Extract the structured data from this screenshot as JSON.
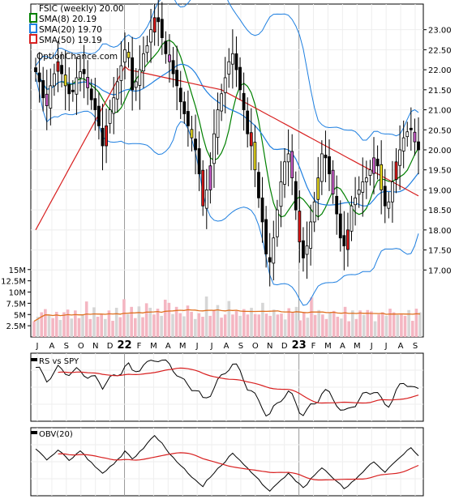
{
  "legend": {
    "title": "FSIC (weekly) 20.00",
    "sma8": "SMA(8) 20.19",
    "sma20": "SMA(20) 19.70",
    "sma50": "SMA(50) 19.19",
    "site": "OptionChance.com"
  },
  "colors": {
    "up_candle": "#ffffff",
    "down_candle": "#ffffff",
    "up_body_fill": "#ffffff",
    "down_body_fill": "#000000",
    "sma8": "#008000",
    "sma20": "#1e7fe0",
    "sma50": "#d82020",
    "bollinger": "#1e7fe0",
    "volume_up": "#f4b6c2",
    "volume_down": "#d6d6d6",
    "volume_avg": "#e07020",
    "rs_line": "#000000",
    "rs_avg": "#d82020",
    "obv_line": "#000000",
    "obv_avg": "#d82020",
    "highlight_red": "#e01818",
    "highlight_yellow": "#f0e020",
    "highlight_violet": "#d060d0"
  },
  "panels": {
    "rs_label": "RS vs SPY",
    "obv_label": "OBV(20)"
  },
  "chart_data": {
    "type": "candlestick",
    "price_axis": {
      "ylim": [
        16.5,
        23.6
      ],
      "ticks": [
        "23.00",
        "22.50",
        "22.00",
        "21.50",
        "21.00",
        "20.50",
        "20.00",
        "19.50",
        "19.00",
        "18.50",
        "18.00",
        "17.50",
        "17.00"
      ]
    },
    "volume_axis": {
      "ticks": [
        "15M",
        "12.5M",
        "10M",
        "7.5M",
        "5M",
        "2.5M"
      ]
    },
    "x_axis": {
      "labels": [
        "J",
        "A",
        "S",
        "O",
        "N",
        "D",
        "22",
        "F",
        "M",
        "A",
        "M",
        "J",
        "J",
        "A",
        "S",
        "O",
        "N",
        "D",
        "23",
        "F",
        "M",
        "A",
        "M",
        "J",
        "J",
        "A",
        "S"
      ],
      "bold_labels": [
        "22",
        "23"
      ]
    },
    "close_series": [
      21.95,
      21.7,
      21.3,
      21.1,
      21.6,
      21.9,
      22.2,
      21.9,
      21.6,
      21.4,
      21.45,
      21.8,
      21.95,
      21.9,
      21.55,
      21.25,
      21.0,
      20.6,
      20.1,
      20.6,
      21.0,
      21.3,
      21.7,
      22.1,
      22.5,
      22.3,
      21.5,
      21.7,
      22.0,
      22.4,
      22.6,
      23.0,
      23.3,
      23.2,
      22.8,
      22.4,
      22.2,
      21.9,
      21.6,
      21.2,
      20.9,
      20.6,
      20.3,
      20.0,
      19.4,
      18.6,
      19.0,
      19.6,
      20.4,
      21.0,
      21.4,
      21.8,
      22.2,
      22.4,
      22.0,
      21.5,
      21.0,
      20.4,
      20.1,
      19.5,
      18.8,
      18.2,
      17.4,
      17.2,
      17.8,
      18.5,
      19.2,
      19.7,
      19.9,
      19.3,
      18.5,
      17.7,
      17.3,
      17.6,
      18.2,
      18.7,
      19.3,
      19.9,
      19.8,
      19.4,
      18.9,
      18.4,
      17.8,
      17.6,
      18.0,
      18.6,
      18.8,
      19.0,
      19.2,
      19.3,
      19.5,
      19.8,
      19.6,
      19.0,
      18.6,
      18.7,
      19.2,
      19.7,
      20.0,
      20.3,
      20.45,
      20.5,
      20.2,
      20.0
    ],
    "volume_series": [
      3.5,
      4.5,
      5.5,
      6.2,
      4.8,
      4.2,
      5.6,
      3.8,
      5.5,
      6.1,
      4.1,
      5.9,
      4.2,
      4.9,
      7.9,
      4.0,
      6.6,
      4.5,
      5.0,
      4.0,
      5.9,
      3.6,
      6.5,
      4.4,
      8.4,
      5.1,
      6.7,
      4.2,
      6.8,
      4.4,
      7.5,
      6.5,
      5.0,
      6.3,
      4.7,
      8.3,
      7.6,
      5.1,
      6.7,
      5.3,
      4.6,
      7.0,
      5.6,
      4.0,
      5.3,
      4.5,
      9.0,
      4.7,
      6.0,
      7.1,
      4.3,
      5.0,
      8.0,
      5.0,
      5.8,
      4.7,
      6.2,
      5.0,
      6.5,
      5.1,
      5.0,
      7.6,
      5.2,
      4.7,
      6.1,
      5.0,
      5.2,
      3.9,
      6.4,
      5.4,
      6.7,
      3.7,
      5.6,
      4.3,
      8.8,
      4.9,
      6.0,
      5.0,
      4.0,
      5.5,
      5.8,
      4.5,
      4.1,
      6.7,
      3.5,
      5.9,
      4.0,
      5.9,
      4.9,
      6.0,
      5.7,
      3.5,
      5.0,
      5.5,
      4.7,
      6.3,
      5.5,
      4.9,
      5.0,
      4.7,
      6.0,
      3.6,
      6.3,
      5.5
    ]
  }
}
